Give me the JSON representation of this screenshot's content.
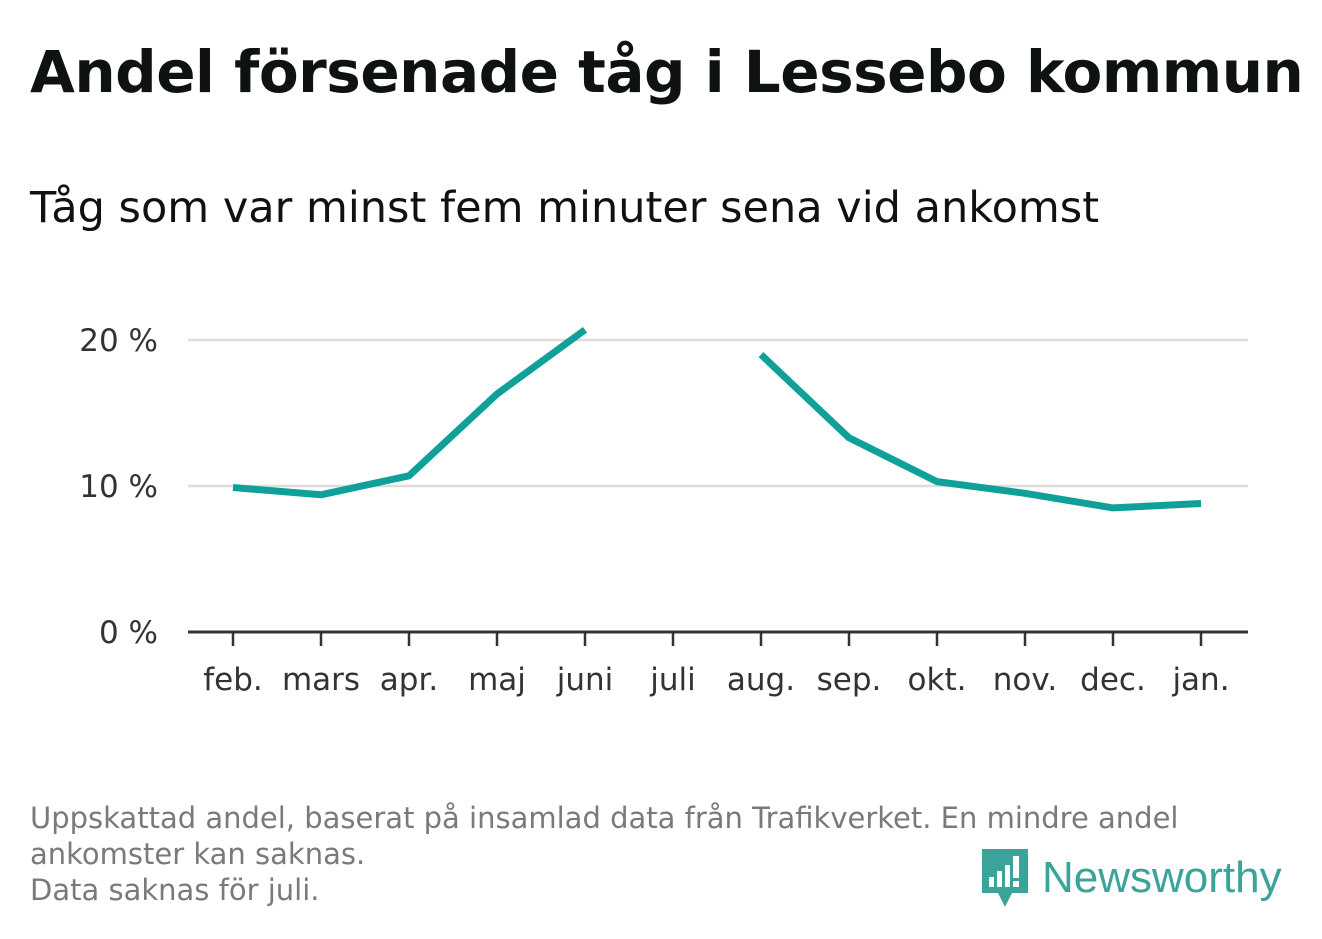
{
  "title": "Andel försenade tåg i Lessebo kommun",
  "subtitle": "Tåg som var minst fem minuter sena vid ankomst",
  "footer": {
    "line1": "Uppskattad andel, baserat på insamlad data från Trafikverket. En mindre andel",
    "line2": "ankomster kan saknas.",
    "line3": "Data saknas för juli."
  },
  "logo": {
    "text": "Newsworthy",
    "icon": "newsworthy-bar-chart-icon",
    "color": "#3aa39a"
  },
  "chart_data": {
    "type": "line",
    "categories": [
      "feb.",
      "mars",
      "apr.",
      "maj",
      "juni",
      "juli",
      "aug.",
      "sep.",
      "okt.",
      "nov.",
      "dec.",
      "jan."
    ],
    "series": [
      {
        "values": [
          9.9,
          9.4,
          10.7,
          16.3,
          20.7,
          null,
          19.0,
          13.3,
          10.3,
          9.5,
          8.5,
          8.8
        ],
        "color": "#0fa199"
      }
    ],
    "yticks": [
      {
        "value": 0,
        "label": "0 %"
      },
      {
        "value": 10,
        "label": "10 %"
      },
      {
        "value": 20,
        "label": "20 %"
      }
    ],
    "ylim": [
      0,
      20
    ],
    "grid": true,
    "missing": [
      "juli"
    ]
  }
}
